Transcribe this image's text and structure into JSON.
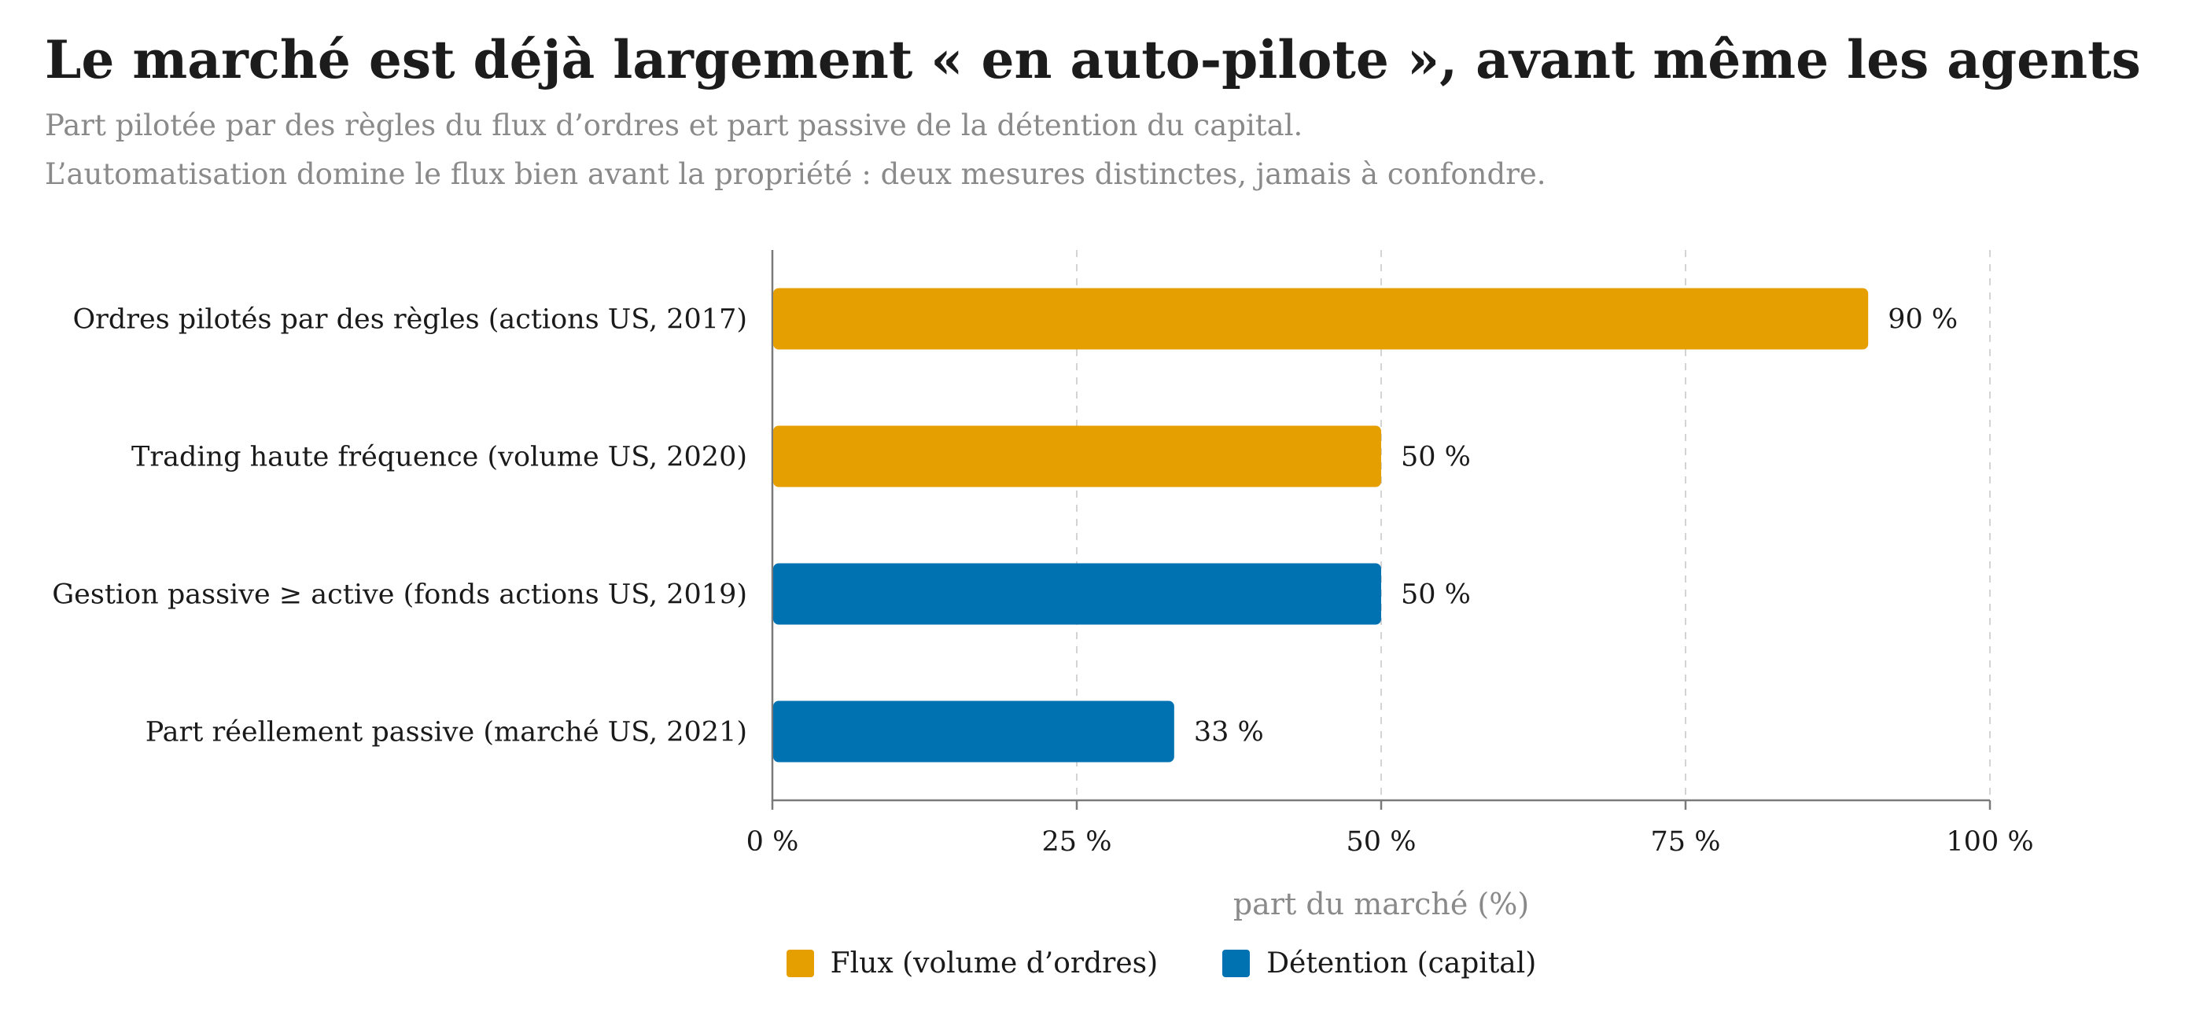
{
  "title": "Le marché est déjà largement « en auto-pilote », avant même les agents",
  "subtitle_line1": "Part pilotée par des règles du flux d’ordres et part passive de la détention du capital.",
  "subtitle_line2": "L’automatisation domine le flux bien avant la propriété : deux mesures distinctes, jamais à confondre.",
  "chart_data": {
    "type": "bar",
    "orientation": "horizontal",
    "categories": [
      "Ordres pilotés par des règles (actions US, 2017)",
      "Trading haute fréquence (volume US, 2020)",
      "Gestion passive ≥ active (fonds actions US, 2019)",
      "Part réellement passive (marché US, 2021)"
    ],
    "values": [
      90,
      50,
      50,
      33
    ],
    "value_labels": [
      "90 %",
      "50 %",
      "50 %",
      "33 %"
    ],
    "series_of_bar": [
      "flux",
      "flux",
      "detention",
      "detention"
    ],
    "xlabel": "part du marché (%)",
    "xlim": [
      0,
      100
    ],
    "xticks": [
      0,
      25,
      50,
      75,
      100
    ],
    "xtick_labels": [
      "0 %",
      "25 %",
      "50 %",
      "75 %",
      "100 %"
    ],
    "grid": "vertical dashed",
    "legend_position": "bottom",
    "series": [
      {
        "key": "flux",
        "name": "Flux (volume d’ordres)",
        "color": "#E69F00"
      },
      {
        "key": "detention",
        "name": "Détention (capital)",
        "color": "#0072B2"
      }
    ]
  }
}
